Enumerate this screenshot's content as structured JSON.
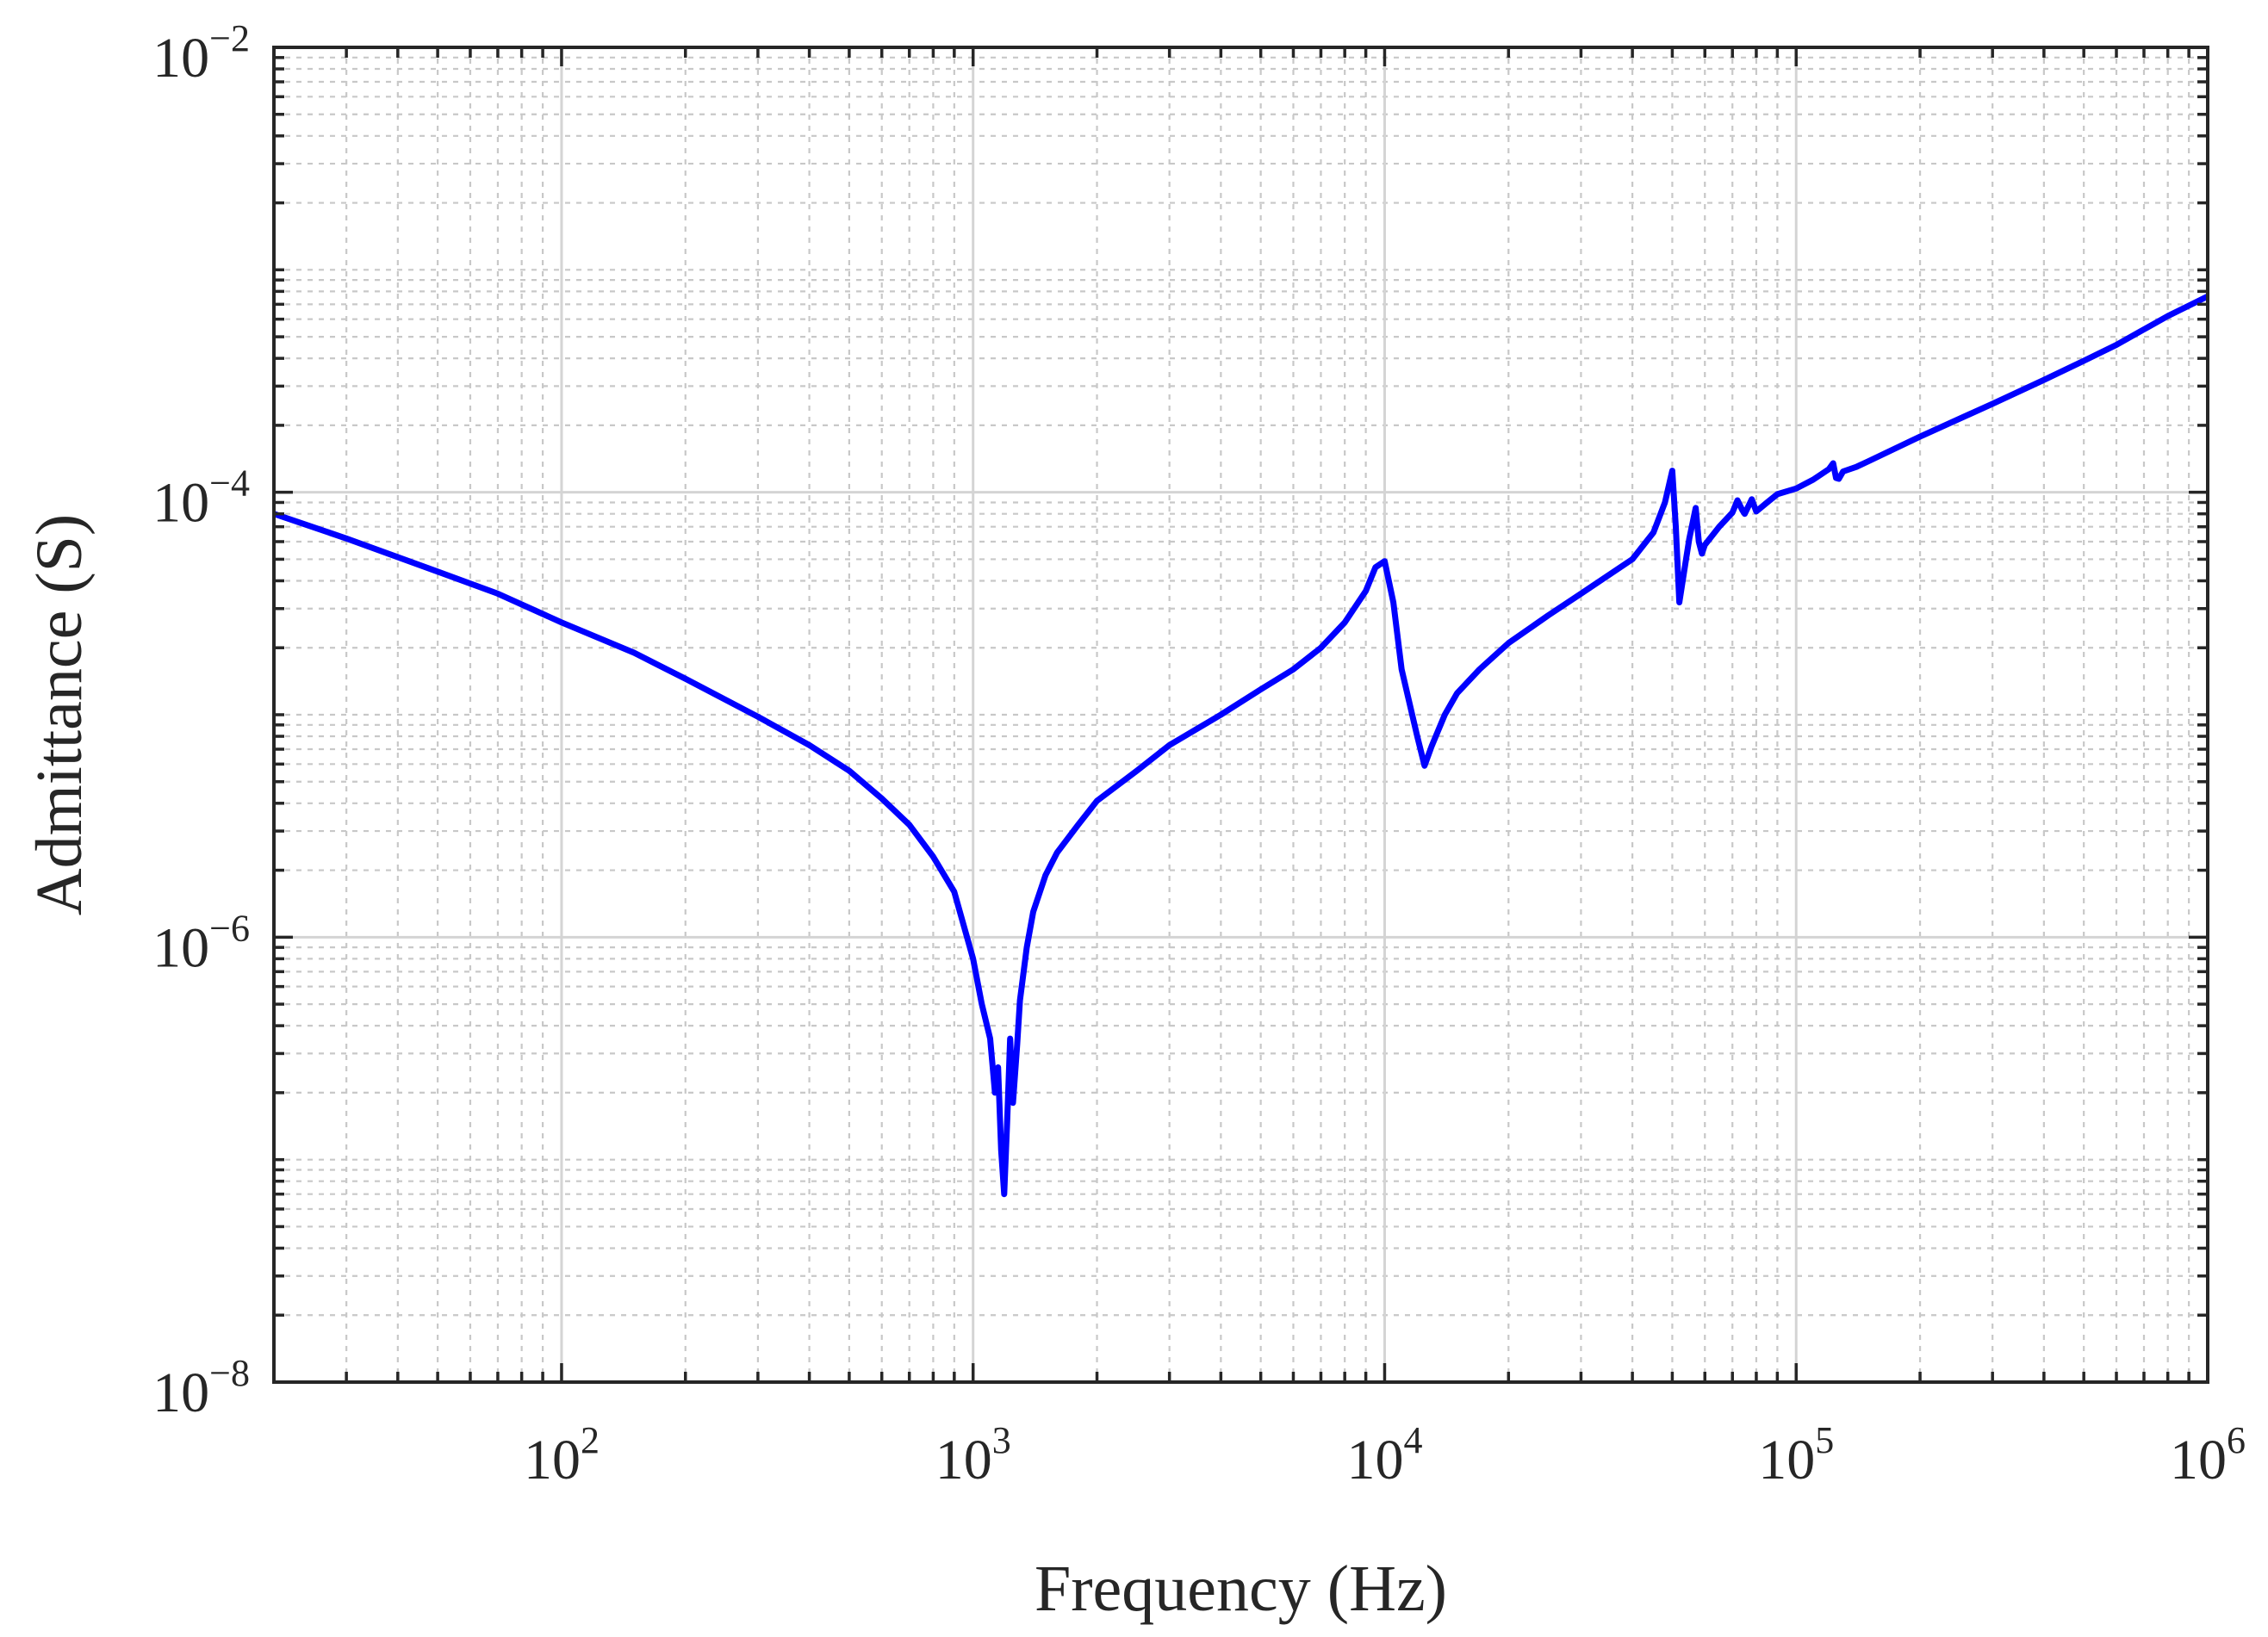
{
  "chart_data": {
    "type": "line",
    "title": "",
    "xlabel": "Frequency (Hz)",
    "ylabel": "Admittance (S)",
    "xscale": "log",
    "yscale": "log",
    "xlim": [
      20,
      1000000
    ],
    "ylim": [
      1e-08,
      0.01
    ],
    "grid": true,
    "minor_grid": true,
    "x_ticks": [
      {
        "base": "10",
        "exp": "2"
      },
      {
        "base": "10",
        "exp": "3"
      },
      {
        "base": "10",
        "exp": "4"
      },
      {
        "base": "10",
        "exp": "5"
      },
      {
        "base": "10",
        "exp": "6"
      }
    ],
    "y_ticks": [
      {
        "base": "10",
        "exp": "−2"
      },
      {
        "base": "10",
        "exp": "−4"
      },
      {
        "base": "10",
        "exp": "−6"
      },
      {
        "base": "10",
        "exp": "−8"
      }
    ],
    "colors": {
      "series": "#0000ff",
      "axis": "#262626"
    },
    "series": [
      {
        "x": [
          20,
          30,
          50,
          70,
          100,
          150,
          200,
          300,
          400,
          500,
          600,
          700,
          800,
          900,
          1000,
          1050,
          1100,
          1130,
          1150,
          1170,
          1190,
          1210,
          1230,
          1250,
          1280,
          1300,
          1350,
          1400,
          1500,
          1600,
          1800,
          2000,
          2500,
          3000,
          4000,
          5000,
          6000,
          7000,
          8000,
          9000,
          9500,
          10000,
          10500,
          11000,
          12000,
          12500,
          13000,
          14000,
          15000,
          17000,
          20000,
          25000,
          30000,
          40000,
          45000,
          48000,
          50000,
          51000,
          52000,
          53000,
          54000,
          55000,
          57000,
          58000,
          59000,
          60000,
          65000,
          70000,
          72000,
          74000,
          75000,
          78000,
          80000,
          85000,
          90000,
          100000,
          110000,
          120000,
          123000,
          125000,
          127000,
          130000,
          140000,
          150000,
          200000,
          300000,
          400000,
          500000,
          600000,
          700000,
          800000,
          1000000
        ],
        "y": [
          8e-05,
          6.2e-05,
          4.4e-05,
          3.5e-05,
          2.6e-05,
          1.9e-05,
          1.45e-05,
          9.8e-06,
          7.3e-06,
          5.6e-06,
          4.2e-06,
          3.2e-06,
          2.3e-06,
          1.6e-06,
          8e-07,
          5e-07,
          3.5e-07,
          2e-07,
          2.6e-07,
          1.1e-07,
          7e-08,
          1.5e-07,
          3.5e-07,
          1.8e-07,
          3.3e-07,
          5.2e-07,
          9e-07,
          1.3e-06,
          1.9e-06,
          2.4e-06,
          3.2e-06,
          4.1e-06,
          5.6e-06,
          7.3e-06,
          1e-05,
          1.3e-05,
          1.6e-05,
          2e-05,
          2.6e-05,
          3.6e-05,
          4.6e-05,
          4.9e-05,
          3.2e-05,
          1.6e-05,
          8e-06,
          5.9e-06,
          7.2e-06,
          1e-05,
          1.25e-05,
          1.6e-05,
          2.1e-05,
          2.8e-05,
          3.5e-05,
          5e-05,
          6.6e-05,
          9e-05,
          0.000125,
          7e-05,
          3.2e-05,
          4e-05,
          5e-05,
          6.2e-05,
          8.5e-05,
          6e-05,
          5.3e-05,
          5.8e-05,
          7e-05,
          8.1e-05,
          9.2e-05,
          8.3e-05,
          8e-05,
          9.3e-05,
          8.2e-05,
          9e-05,
          9.8e-05,
          0.000104,
          0.000114,
          0.000127,
          0.000135,
          0.000116,
          0.000115,
          0.000124,
          0.00013,
          0.000138,
          0.000178,
          0.00025,
          0.00032,
          0.00039,
          0.00046,
          0.00054,
          0.00062,
          0.00076
        ]
      }
    ]
  }
}
